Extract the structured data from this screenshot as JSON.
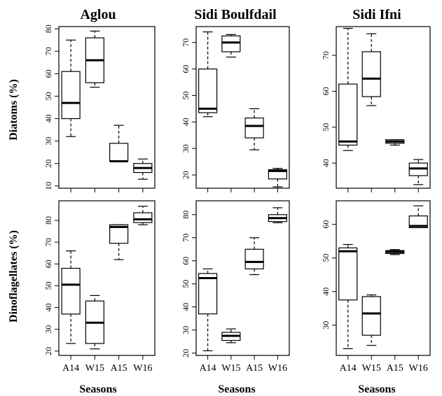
{
  "figure": {
    "column_titles": [
      "Aglou",
      "Sidi Boulfdail",
      "Sidi Ifni"
    ],
    "row_ylabels": [
      "Diatoms (%)",
      "Dinoflagellates (%)"
    ],
    "xlabel": "Seasons",
    "seasons": [
      "A14",
      "W15",
      "A15",
      "W16"
    ]
  },
  "chart_data": [
    {
      "type": "boxplot",
      "panel": "Aglou",
      "ylabel": "Diatoms (%)",
      "xlabel": "",
      "ylim": [
        9,
        81
      ],
      "yticks": [
        10,
        20,
        30,
        40,
        50,
        60,
        70,
        80
      ],
      "categories": [
        "A14",
        "W15",
        "A15",
        "W16"
      ],
      "boxes": [
        {
          "category": "A14",
          "min": 32,
          "q1": 40,
          "median": 47,
          "q3": 61,
          "max": 75
        },
        {
          "category": "W15",
          "min": 54,
          "q1": 56,
          "median": 66,
          "q3": 76,
          "max": 79
        },
        {
          "category": "A15",
          "min": 21,
          "q1": 21,
          "median": 21,
          "q3": 29,
          "max": 37
        },
        {
          "category": "W16",
          "min": 13,
          "q1": 16,
          "median": 18,
          "q3": 20,
          "max": 22
        }
      ]
    },
    {
      "type": "boxplot",
      "panel": "Sidi Boulfdail",
      "ylabel": "Diatoms (%)",
      "xlabel": "",
      "ylim": [
        15,
        76
      ],
      "yticks": [
        20,
        30,
        40,
        50,
        60,
        70
      ],
      "categories": [
        "A14",
        "W15",
        "A15",
        "W16"
      ],
      "boxes": [
        {
          "category": "A14",
          "min": 42,
          "q1": 43.5,
          "median": 45,
          "q3": 60,
          "max": 74
        },
        {
          "category": "W15",
          "min": 64.5,
          "q1": 66.5,
          "median": 70,
          "q3": 72.5,
          "max": 73
        },
        {
          "category": "A15",
          "min": 29.5,
          "q1": 34,
          "median": 38.5,
          "q3": 41.5,
          "max": 45
        },
        {
          "category": "W16",
          "min": 15.5,
          "q1": 18.5,
          "median": 21.5,
          "q3": 22,
          "max": 22.5
        }
      ]
    },
    {
      "type": "boxplot",
      "panel": "Sidi Ifni",
      "ylabel": "Diatoms (%)",
      "xlabel": "",
      "ylim": [
        33,
        78
      ],
      "yticks": [
        40,
        50,
        60,
        70
      ],
      "categories": [
        "A14",
        "W15",
        "A15",
        "W16"
      ],
      "boxes": [
        {
          "category": "A14",
          "min": 43.5,
          "q1": 45,
          "median": 46,
          "q3": 62,
          "max": 77.5
        },
        {
          "category": "W15",
          "min": 56,
          "q1": 58.5,
          "median": 63.5,
          "q3": 71,
          "max": 76
        },
        {
          "category": "A15",
          "min": 45,
          "q1": 45.5,
          "median": 46,
          "q3": 46.5,
          "max": 46.5
        },
        {
          "category": "W16",
          "min": 34,
          "q1": 36.5,
          "median": 38.5,
          "q3": 40,
          "max": 41
        }
      ]
    },
    {
      "type": "boxplot",
      "panel": "Aglou",
      "ylabel": "Dinoflagellates (%)",
      "xlabel": "Seasons",
      "ylim": [
        18,
        89
      ],
      "yticks": [
        20,
        30,
        40,
        50,
        60,
        70,
        80
      ],
      "categories": [
        "A14",
        "W15",
        "A15",
        "W16"
      ],
      "boxes": [
        {
          "category": "A14",
          "min": 23.5,
          "q1": 37,
          "median": 50.5,
          "q3": 58,
          "max": 66
        },
        {
          "category": "W15",
          "min": 21,
          "q1": 23.5,
          "median": 33,
          "q3": 43,
          "max": 45.5
        },
        {
          "category": "A15",
          "min": 62,
          "q1": 69.5,
          "median": 77,
          "q3": 78,
          "max": 78
        },
        {
          "category": "W16",
          "min": 78,
          "q1": 79,
          "median": 80.5,
          "q3": 83.5,
          "max": 86.5
        }
      ]
    },
    {
      "type": "boxplot",
      "panel": "Sidi Boulfdail",
      "ylabel": "Dinoflagellates (%)",
      "xlabel": "Seasons",
      "ylim": [
        19,
        86
      ],
      "yticks": [
        20,
        30,
        40,
        50,
        60,
        70,
        80
      ],
      "categories": [
        "A14",
        "W15",
        "A15",
        "W16"
      ],
      "boxes": [
        {
          "category": "A14",
          "min": 21,
          "q1": 37,
          "median": 52.5,
          "q3": 54.5,
          "max": 56.5
        },
        {
          "category": "W15",
          "min": 24.5,
          "q1": 25.5,
          "median": 27.5,
          "q3": 29,
          "max": 30.5
        },
        {
          "category": "A15",
          "min": 54,
          "q1": 56.5,
          "median": 59.5,
          "q3": 65,
          "max": 70
        },
        {
          "category": "W16",
          "min": 76.5,
          "q1": 77,
          "median": 78.5,
          "q3": 80,
          "max": 83
        }
      ]
    },
    {
      "type": "boxplot",
      "panel": "Sidi Ifni",
      "ylabel": "Dinoflagellates (%)",
      "xlabel": "Seasons",
      "ylim": [
        21,
        67
      ],
      "yticks": [
        30,
        40,
        50,
        60
      ],
      "categories": [
        "A14",
        "W15",
        "A15",
        "W16"
      ],
      "boxes": [
        {
          "category": "A14",
          "min": 23,
          "q1": 37.5,
          "median": 52,
          "q3": 53,
          "max": 54
        },
        {
          "category": "W15",
          "min": 24,
          "q1": 27,
          "median": 33.5,
          "q3": 38.5,
          "max": 39
        },
        {
          "category": "A15",
          "min": 51,
          "q1": 51.3,
          "median": 51.8,
          "q3": 52.2,
          "max": 52.5
        },
        {
          "category": "W16",
          "min": 59,
          "q1": 59,
          "median": 59.5,
          "q3": 62.5,
          "max": 65.5
        }
      ]
    }
  ]
}
